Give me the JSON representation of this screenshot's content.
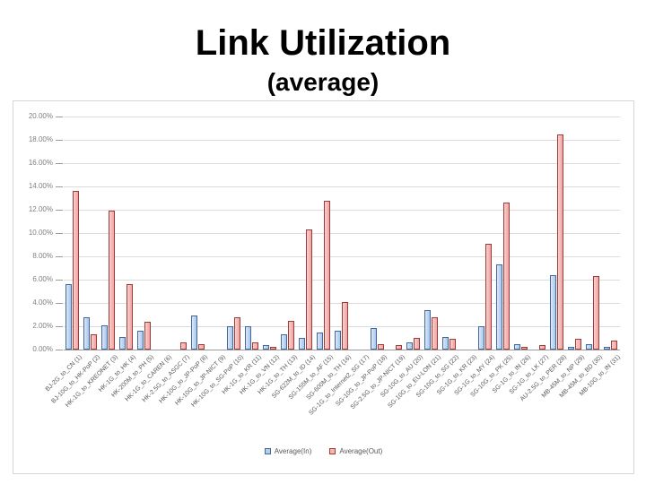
{
  "slide": {
    "title": "Link Utilization",
    "subtitle": "(average)"
  },
  "chart_data": {
    "type": "bar",
    "title": "Link Utilization (average)",
    "categories": [
      "BJ-2G_to_CN (1)",
      "BJ-10G_to_HK-PoP (2)",
      "HK-1G_to_KREONET (3)",
      "HK-1G_to_HK (4)",
      "HK-200M_to_PH (5)",
      "HK-1G_to_CAREN (6)",
      "HK-2.5G_to_ASGC (7)",
      "HK-10G_to_JP-PoP (8)",
      "HK-10G_to_JP-NICT (9)",
      "HK-10G_to_SG-PoP (10)",
      "HK-1G_to_KR (11)",
      "HK-1G_to_VN (12)",
      "HK-1G_to_TH (13)",
      "SG-622M_to_ID (14)",
      "SG-155M_to_AF (15)",
      "SG-600M_to_TH (16)",
      "SG-1G_to_Internet2_SG (17)",
      "SG-10G_to_JP-PoP (18)",
      "SG-2.5G_to_JP-NICT (19)",
      "SG-10G_to_AU (20)",
      "SG-10G_to_EU-LON (21)",
      "SG-10G_to_SG (22)",
      "SG-1G_to_KR (23)",
      "SG-1G_to_MY (24)",
      "SG-10G_to_PK (25)",
      "SG-1G_to_IN (26)",
      "SG-1G_to_LK (27)",
      "AU-2.5G_to_PER (28)",
      "MB-45M_to_NP (29)",
      "MB-45M_to_BD (30)",
      "MB-10G_to_IN (31)"
    ],
    "series": [
      {
        "name": "Average(In)",
        "values": [
          5.6,
          2.8,
          2.1,
          1.1,
          1.6,
          0,
          0,
          2.9,
          0,
          2.0,
          2.0,
          0.35,
          1.3,
          1.0,
          1.5,
          1.6,
          0,
          1.85,
          0,
          0.6,
          3.4,
          1.1,
          0,
          2.0,
          7.3,
          0.5,
          0,
          6.4,
          0.25,
          0.5,
          0.25
        ]
      },
      {
        "name": "Average(Out)",
        "values": [
          13.6,
          1.3,
          11.9,
          5.6,
          2.4,
          0,
          0.6,
          0.5,
          0,
          2.75,
          0.65,
          0.25,
          2.5,
          10.3,
          12.8,
          4.1,
          0,
          0.5,
          0.4,
          1.0,
          2.8,
          0.95,
          0,
          9.1,
          12.6,
          0.25,
          0.35,
          18.5,
          0.9,
          6.3,
          0.8
        ]
      }
    ],
    "ylim": [
      0,
      20
    ],
    "ytick_step": 2,
    "ytick_labels": [
      "0.00%",
      "2.00%",
      "4.00%",
      "6.00%",
      "8.00%",
      "10.00%",
      "12.00%",
      "14.00%",
      "16.00%",
      "18.00%",
      "20.00%"
    ],
    "xlabel": "",
    "ylabel": "",
    "grid": true,
    "legend_position": "bottom",
    "colors": {
      "in_fill": "#b8cce4",
      "in_border": "#41699c",
      "out_fill": "#f2b8b6",
      "out_border": "#9e3a38",
      "gridline": "#dcdcdc",
      "axis_text": "#7f7f7f",
      "category_text": "#595959"
    }
  }
}
